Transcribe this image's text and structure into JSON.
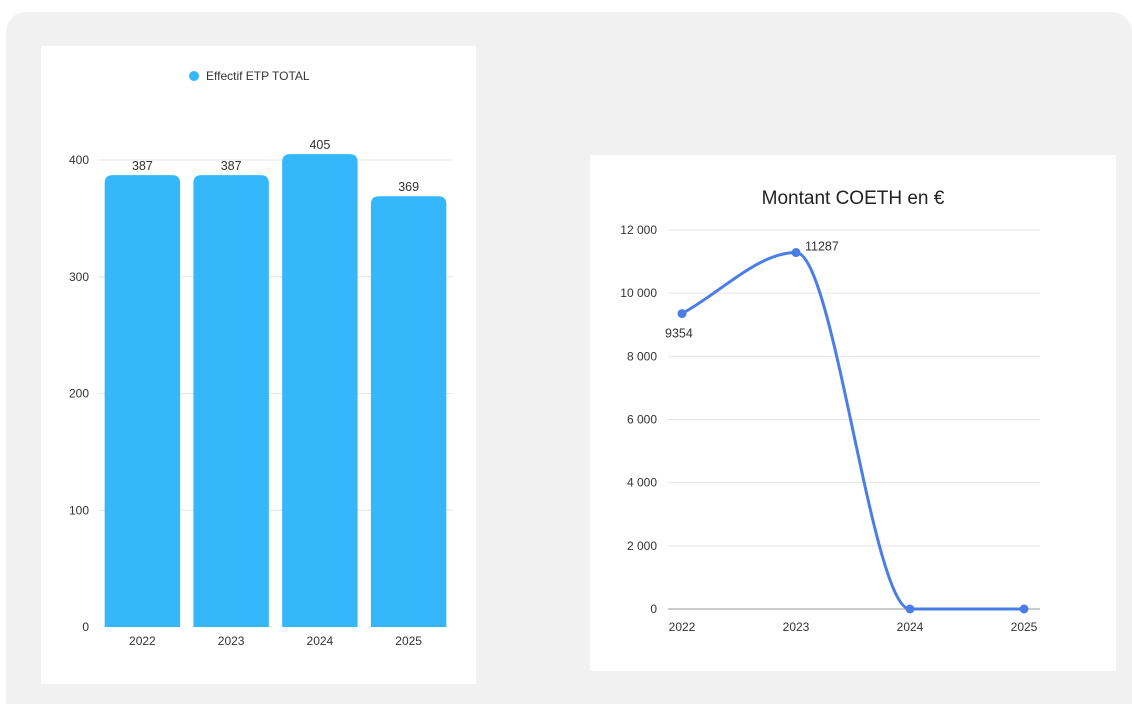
{
  "chart_data": [
    {
      "type": "bar",
      "title": "",
      "legend": {
        "position": "top",
        "entries": [
          "Effectif ETP TOTAL"
        ]
      },
      "categories": [
        "2022",
        "2023",
        "2024",
        "2025"
      ],
      "series": [
        {
          "name": "Effectif ETP TOTAL",
          "values": [
            387,
            387,
            405,
            369
          ],
          "data_labels": [
            "387",
            "387",
            "405",
            "369"
          ],
          "color": "#35b7fb"
        }
      ],
      "ylim": [
        0,
        400
      ],
      "yticks": [
        0,
        100,
        200,
        300,
        400
      ],
      "ytick_labels": [
        "0",
        "100",
        "200",
        "300",
        "400"
      ],
      "grid": true
    },
    {
      "type": "line",
      "title": "Montant COETH en €",
      "x": [
        "2022",
        "2023",
        "2024",
        "2025"
      ],
      "series": [
        {
          "values": [
            9354,
            11287,
            0,
            0
          ],
          "data_labels": [
            "9354",
            "11287",
            "",
            ""
          ],
          "color": "#4a7ee6",
          "smooth": true
        }
      ],
      "ylim": [
        0,
        12000
      ],
      "yticks": [
        0,
        2000,
        4000,
        6000,
        8000,
        10000,
        12000
      ],
      "ytick_labels": [
        "0",
        "2 000",
        "4 000",
        "6 000",
        "8 000",
        "10 000",
        "12 000"
      ],
      "grid": true
    }
  ]
}
